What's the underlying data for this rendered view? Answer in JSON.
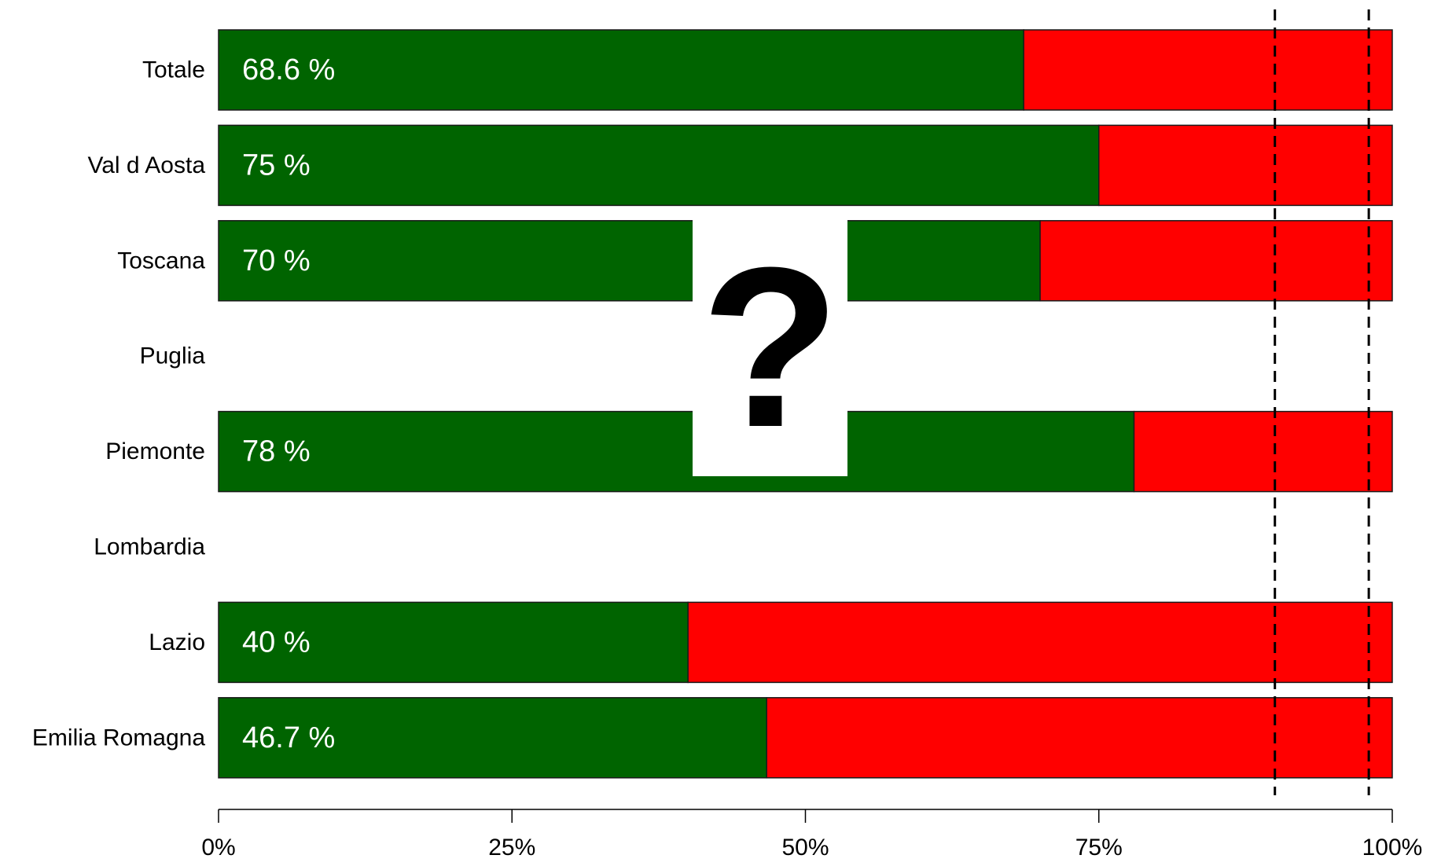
{
  "chart_data": {
    "type": "bar",
    "orientation": "horizontal",
    "stacked": true,
    "categories": [
      "Totale",
      "Val d Aosta",
      "Toscana",
      "Puglia",
      "Piemonte",
      "Lombardia",
      "Lazio",
      "Emilia Romagna"
    ],
    "series": [
      {
        "values": [
          68.6,
          75,
          70,
          null,
          78,
          null,
          40,
          46.7
        ],
        "color": "#006400"
      },
      {
        "values": [
          31.4,
          25,
          30,
          null,
          22,
          null,
          60,
          53.3
        ],
        "color": "#ff0000"
      }
    ],
    "data_labels": [
      "68.6 %",
      "75 %",
      "70 %",
      "",
      "78 %",
      "",
      "40 %",
      "46.7 %"
    ],
    "x_ticks": [
      "0%",
      "25%",
      "50%",
      "75%",
      "100%"
    ],
    "xlim": [
      0,
      100
    ],
    "reference_lines": [
      90,
      98
    ],
    "reference_line_style": "dashed",
    "annotation": "?",
    "grid": false,
    "legend": "none"
  }
}
